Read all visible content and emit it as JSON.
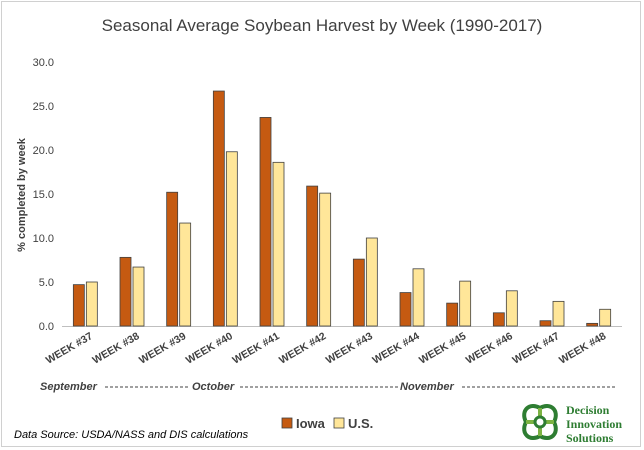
{
  "chart_data": {
    "type": "bar",
    "title": "Seasonal Average Soybean Harvest by Week (1990-2017)",
    "ylabel": "% completed by week",
    "xlabel": "",
    "ylim": [
      0,
      30
    ],
    "yticks": [
      "0.0",
      "5.0",
      "10.0",
      "15.0",
      "20.0",
      "25.0",
      "30.0"
    ],
    "grid": false,
    "legend_position": "bottom",
    "categories": [
      "WEEK #37",
      "WEEK #38",
      "WEEK #39",
      "WEEK #40",
      "WEEK #41",
      "WEEK #42",
      "WEEK #43",
      "WEEK #44",
      "WEEK #45",
      "WEEK #46",
      "WEEK #47",
      "WEEK #48"
    ],
    "series": [
      {
        "name": "Iowa",
        "color": "#c55a11",
        "values": [
          4.7,
          7.8,
          15.2,
          26.7,
          23.7,
          15.9,
          7.6,
          3.8,
          2.6,
          1.5,
          0.6,
          0.3
        ]
      },
      {
        "name": "U.S.",
        "color": "#ffe699",
        "values": [
          5.0,
          6.7,
          11.7,
          19.8,
          18.6,
          15.1,
          10.0,
          6.5,
          5.1,
          4.0,
          2.8,
          1.9
        ]
      }
    ],
    "month_annotation": {
      "september": "September",
      "october": "October",
      "november": "November"
    }
  },
  "source_note": "Data Source: USDA/NASS and DIS calculations",
  "logo": {
    "line1": "Decision",
    "line2": "Innovation",
    "line3": "Solutions",
    "color": "#2e7d32"
  }
}
